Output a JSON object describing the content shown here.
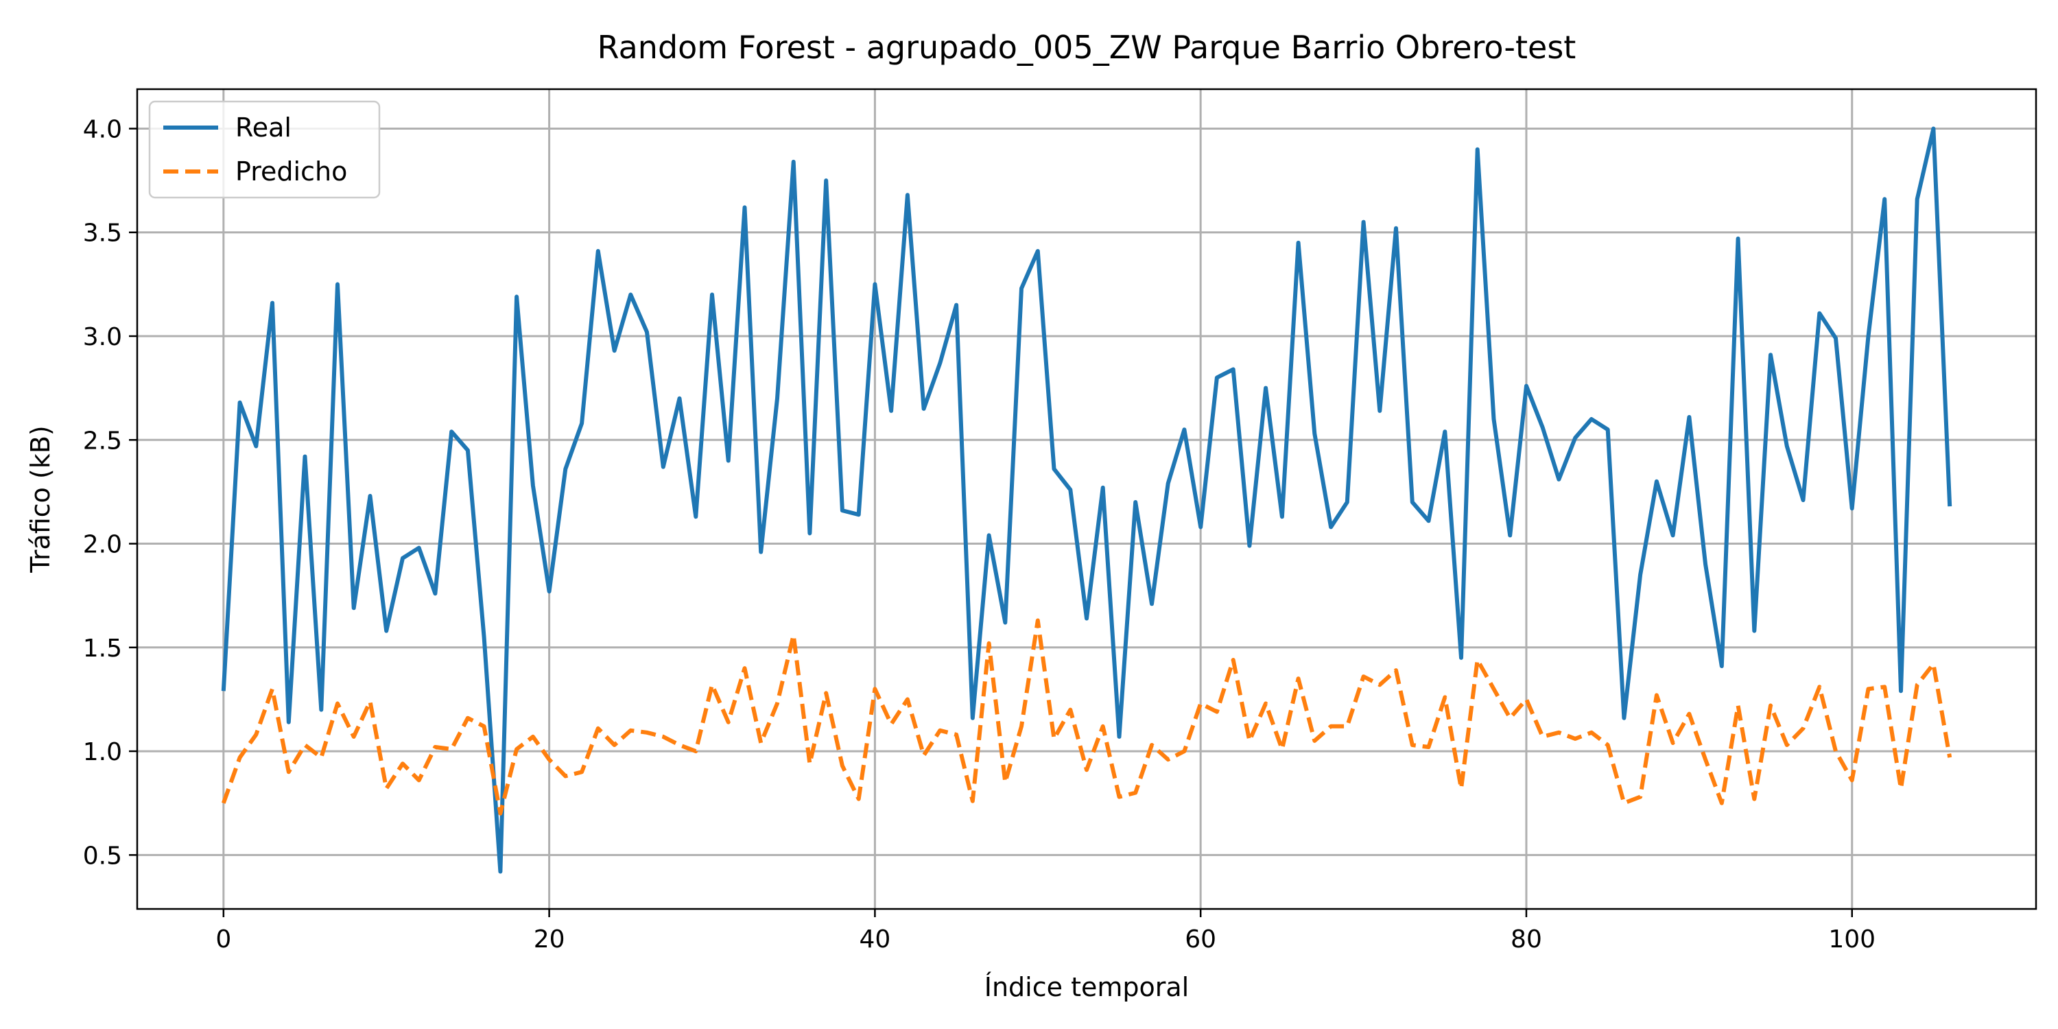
{
  "chart_data": {
    "type": "line",
    "title": "Random Forest - agrupado_005_ZW Parque Barrio Obrero-test",
    "xlabel": "Índice temporal",
    "ylabel": "Tráfico (kB)",
    "xlim": [
      -5.3,
      111.3
    ],
    "ylim": [
      0.24,
      4.19
    ],
    "xticks": [
      0,
      20,
      40,
      60,
      80,
      100
    ],
    "yticks": [
      0.5,
      1.0,
      1.5,
      2.0,
      2.5,
      3.0,
      3.5,
      4.0
    ],
    "ytick_labels": [
      "0.5",
      "1.0",
      "1.5",
      "2.0",
      "2.5",
      "3.0",
      "3.5",
      "4.0"
    ],
    "grid": true,
    "legend_position": "top-left",
    "x": [
      0,
      1,
      2,
      3,
      4,
      5,
      6,
      7,
      8,
      9,
      10,
      11,
      12,
      13,
      14,
      15,
      16,
      17,
      18,
      19,
      20,
      21,
      22,
      23,
      24,
      25,
      26,
      27,
      28,
      29,
      30,
      31,
      32,
      33,
      34,
      35,
      36,
      37,
      38,
      39,
      40,
      41,
      42,
      43,
      44,
      45,
      46,
      47,
      48,
      49,
      50,
      51,
      52,
      53,
      54,
      55,
      56,
      57,
      58,
      59,
      60,
      61,
      62,
      63,
      64,
      65,
      66,
      67,
      68,
      69,
      70,
      71,
      72,
      73,
      74,
      75,
      76,
      77,
      78,
      79,
      80,
      81,
      82,
      83,
      84,
      85,
      86,
      87,
      88,
      89,
      90,
      91,
      92,
      93,
      94,
      95,
      96,
      97,
      98,
      99,
      100,
      101,
      102,
      103,
      104,
      105,
      106
    ],
    "series": [
      {
        "name": "Real",
        "color": "#1f77b4",
        "dash": "solid",
        "values": [
          1.29,
          2.68,
          2.47,
          3.16,
          1.14,
          2.42,
          1.2,
          3.25,
          1.69,
          2.23,
          1.58,
          1.93,
          1.98,
          1.76,
          2.54,
          2.45,
          1.55,
          0.42,
          3.19,
          2.28,
          1.77,
          2.36,
          2.58,
          3.41,
          2.93,
          3.2,
          3.02,
          2.37,
          2.7,
          2.13,
          3.2,
          2.4,
          3.62,
          1.96,
          2.7,
          3.84,
          2.05,
          3.75,
          2.16,
          2.14,
          3.25,
          2.64,
          3.68,
          2.65,
          2.87,
          3.15,
          1.16,
          2.04,
          1.62,
          3.23,
          3.41,
          2.36,
          2.26,
          1.64,
          2.27,
          1.07,
          2.2,
          1.71,
          2.29,
          2.55,
          2.08,
          2.8,
          2.84,
          1.99,
          2.75,
          2.13,
          3.45,
          2.53,
          2.08,
          2.2,
          3.55,
          2.64,
          3.52,
          2.2,
          2.11,
          2.54,
          1.45,
          3.9,
          2.6,
          2.04,
          2.76,
          2.56,
          2.31,
          2.51,
          2.6,
          2.55,
          1.16,
          1.85,
          2.3,
          2.04,
          2.61,
          1.9,
          1.41,
          3.47,
          1.58,
          2.91,
          2.47,
          2.21,
          3.11,
          2.99,
          2.17,
          3.0,
          3.66,
          1.29,
          3.66,
          4.0,
          2.18
        ]
      },
      {
        "name": "Predicho",
        "color": "#ff7f0e",
        "dash": "dashed",
        "values": [
          0.75,
          0.97,
          1.08,
          1.3,
          0.9,
          1.03,
          0.97,
          1.23,
          1.07,
          1.24,
          0.82,
          0.94,
          0.86,
          1.02,
          1.01,
          1.16,
          1.12,
          0.7,
          1.01,
          1.07,
          0.96,
          0.88,
          0.9,
          1.11,
          1.03,
          1.1,
          1.09,
          1.07,
          1.03,
          1.0,
          1.32,
          1.14,
          1.4,
          1.04,
          1.23,
          1.56,
          0.94,
          1.28,
          0.93,
          0.77,
          1.3,
          1.13,
          1.25,
          0.98,
          1.1,
          1.08,
          0.76,
          1.52,
          0.85,
          1.12,
          1.63,
          1.06,
          1.2,
          0.91,
          1.12,
          0.78,
          0.8,
          1.03,
          0.96,
          1.0,
          1.23,
          1.19,
          1.44,
          1.05,
          1.23,
          1.01,
          1.35,
          1.05,
          1.12,
          1.12,
          1.36,
          1.32,
          1.39,
          1.03,
          1.02,
          1.26,
          0.82,
          1.44,
          1.3,
          1.16,
          1.25,
          1.07,
          1.09,
          1.06,
          1.09,
          1.03,
          0.75,
          0.78,
          1.27,
          1.04,
          1.18,
          0.96,
          0.75,
          1.22,
          0.77,
          1.22,
          1.03,
          1.11,
          1.31,
          1.0,
          0.86,
          1.3,
          1.31,
          0.82,
          1.32,
          1.42,
          0.97
        ]
      }
    ]
  }
}
